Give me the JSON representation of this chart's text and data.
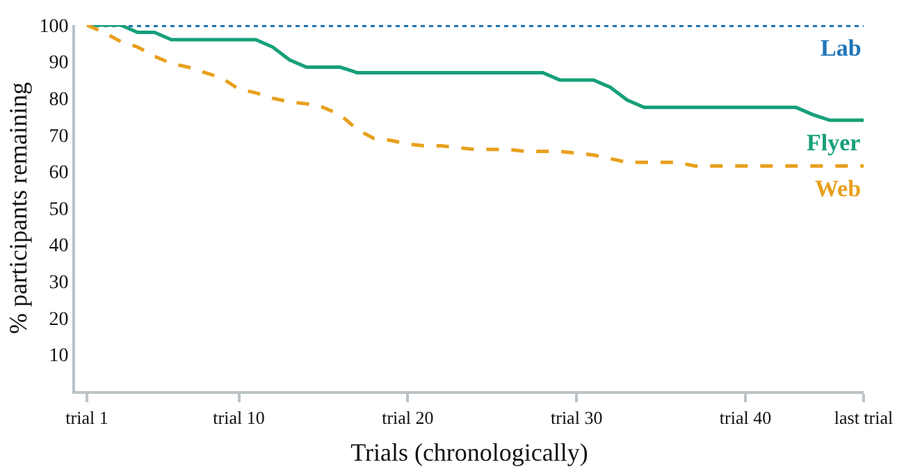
{
  "chart_data": {
    "type": "line",
    "xlabel": "Trials (chronologically)",
    "ylabel": "% participants remaining",
    "categories": [
      "trial 1",
      null,
      null,
      null,
      null,
      null,
      null,
      null,
      null,
      "trial 10",
      null,
      null,
      null,
      null,
      null,
      null,
      null,
      null,
      null,
      "trial 20",
      null,
      null,
      null,
      null,
      null,
      null,
      null,
      null,
      null,
      "trial 30",
      null,
      null,
      null,
      null,
      null,
      null,
      null,
      null,
      null,
      "trial 40",
      null,
      null,
      null,
      null,
      null,
      null,
      "last trial"
    ],
    "ylim": [
      0,
      100
    ],
    "yticks": [
      10,
      20,
      30,
      40,
      50,
      60,
      70,
      80,
      90,
      100
    ],
    "grid": false,
    "legend": false,
    "marker": "none",
    "series": [
      {
        "name": "Lab",
        "color": "#1f75b8",
        "line_style": "dotted",
        "values": [
          100,
          100,
          100,
          100,
          100,
          100,
          100,
          100,
          100,
          100,
          100,
          100,
          100,
          100,
          100,
          100,
          100,
          100,
          100,
          100,
          100,
          100,
          100,
          100,
          100,
          100,
          100,
          100,
          100,
          100,
          100,
          100,
          100,
          100,
          100,
          100,
          100,
          100,
          100,
          100,
          100,
          100,
          100,
          100,
          100,
          100,
          100
        ]
      },
      {
        "name": "Flyer",
        "color": "#16a07a",
        "line_style": "solid",
        "values": [
          100,
          100,
          100,
          98,
          98,
          96,
          96,
          96,
          96,
          96,
          96,
          94,
          90.5,
          88.5,
          88.5,
          88.5,
          87,
          87,
          87,
          87,
          87,
          87,
          87,
          87,
          87,
          87,
          87,
          87,
          85,
          85,
          85,
          83,
          79.5,
          77.5,
          77.5,
          77.5,
          77.5,
          77.5,
          77.5,
          77.5,
          77.5,
          77.5,
          77.5,
          75.5,
          74,
          74,
          74
        ]
      },
      {
        "name": "Web",
        "color": "#e8a01c",
        "line_style": "dashed",
        "values": [
          100,
          98,
          95.5,
          94,
          91.5,
          89.5,
          88.5,
          87,
          85.5,
          82.5,
          81.5,
          80,
          79,
          78.5,
          77.5,
          75.5,
          71.5,
          69,
          68.5,
          67.5,
          67,
          67,
          66.5,
          66,
          66,
          66,
          65.5,
          65.5,
          65.5,
          65,
          64.5,
          63.5,
          62.5,
          62.5,
          62.5,
          62.5,
          61.5,
          61.5,
          61.5,
          61.5,
          61.5,
          61.5,
          61.5,
          61.5,
          61.5,
          61.5,
          61.5
        ]
      }
    ]
  }
}
